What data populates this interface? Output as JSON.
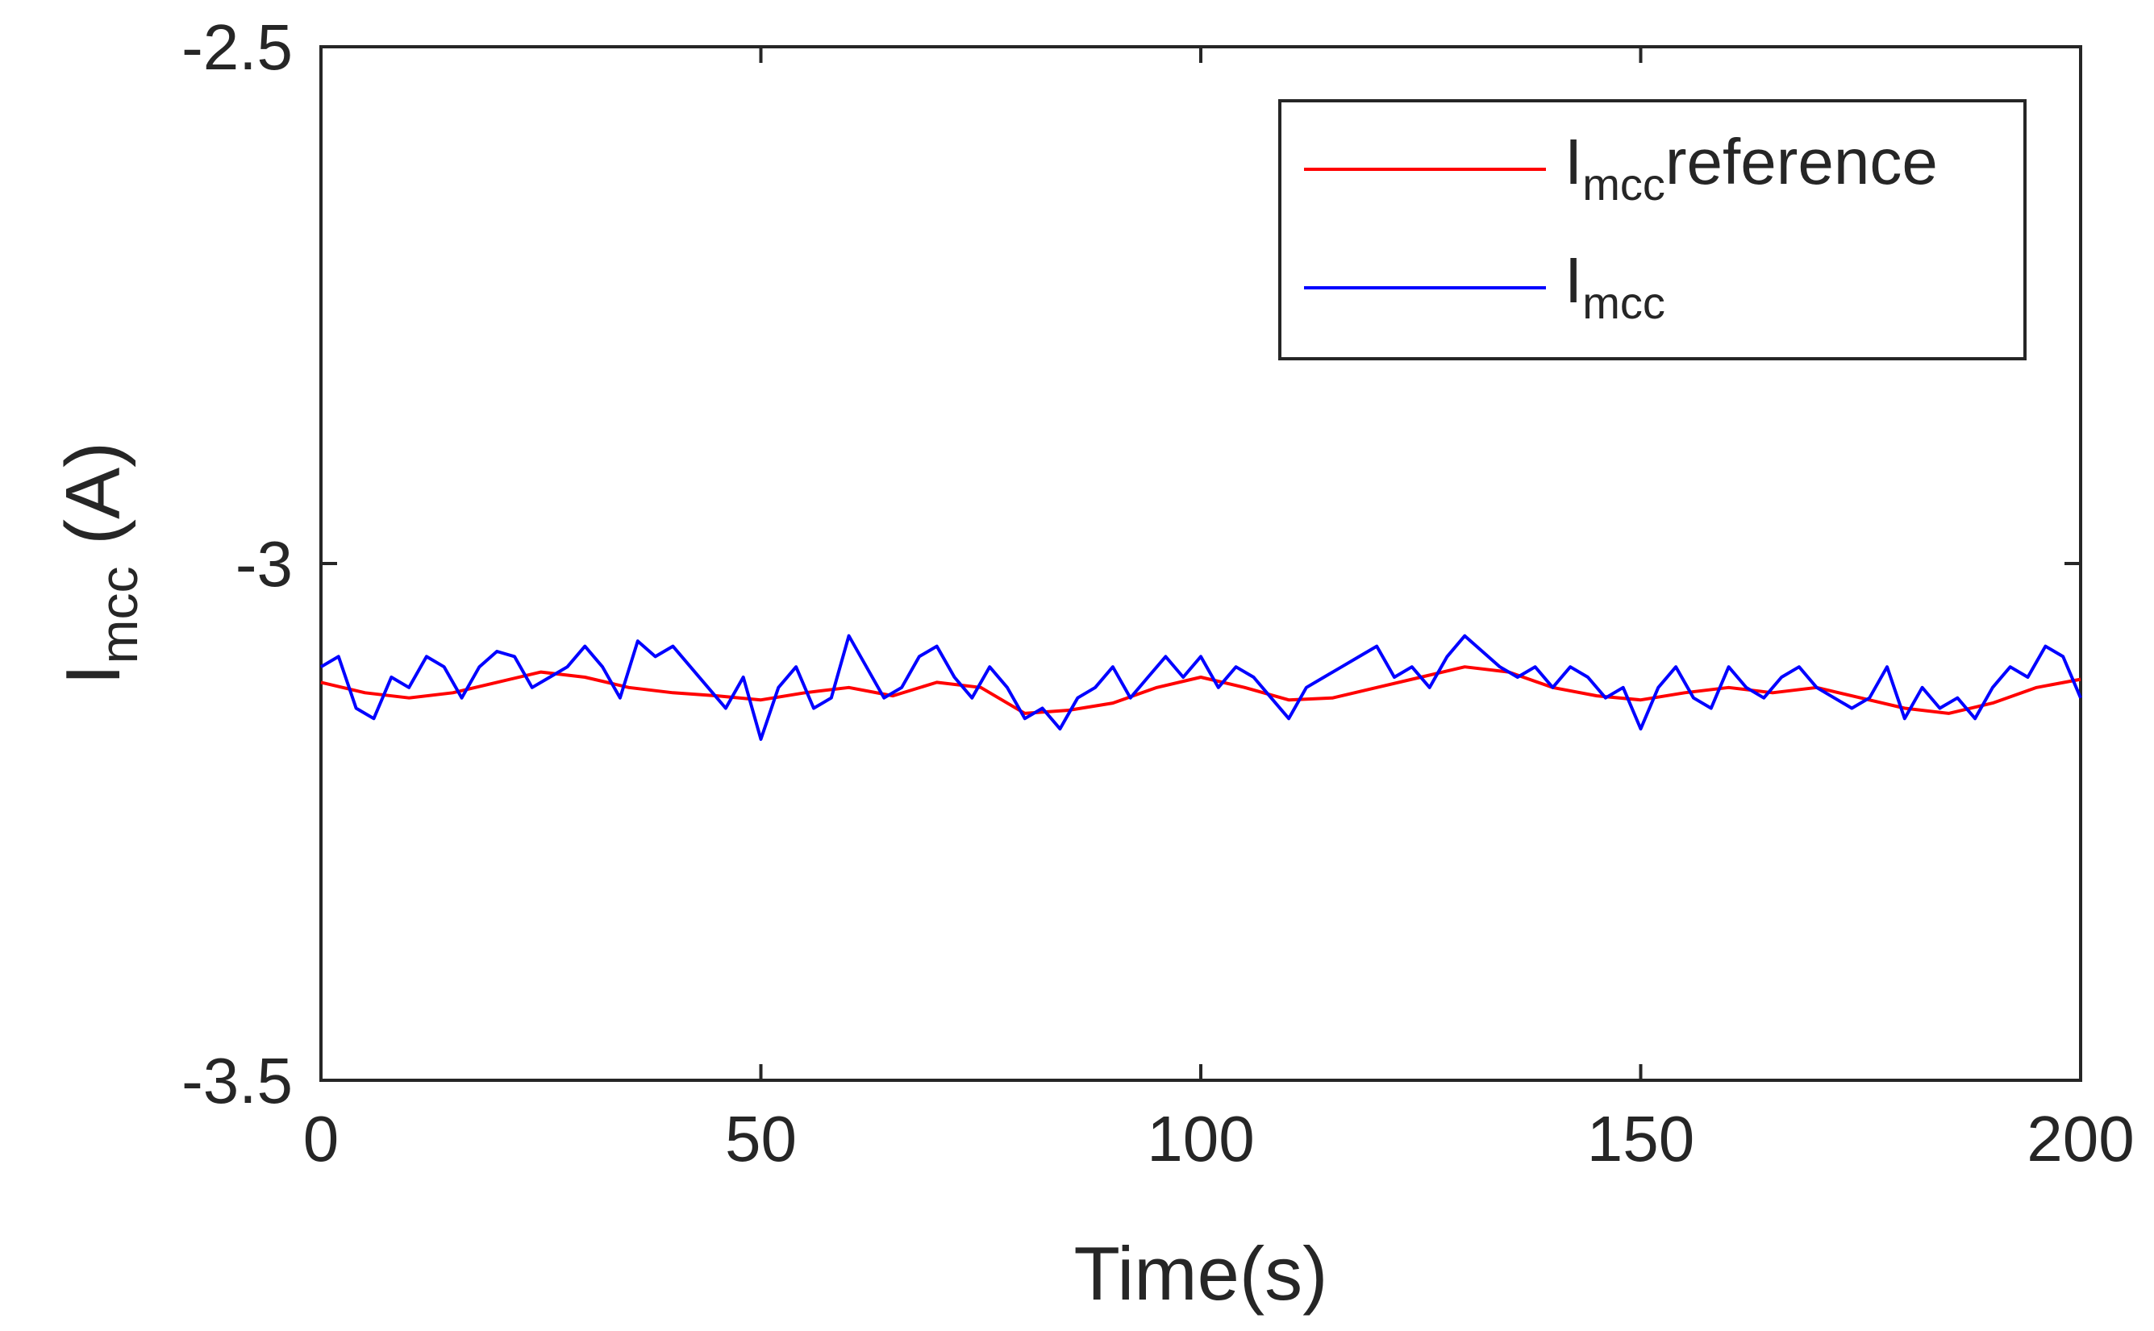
{
  "chart_data": {
    "type": "line",
    "xlabel": "Time(s)",
    "ylabel": {
      "main": "I",
      "sub": "mcc",
      "unit": " (A)"
    },
    "xlim": [
      0,
      200
    ],
    "ylim": [
      -3.5,
      -2.5
    ],
    "xticks": [
      0,
      50,
      100,
      150,
      200
    ],
    "xtick_labels": [
      "0",
      "50",
      "100",
      "150",
      "200"
    ],
    "yticks": [
      -3.5,
      -3,
      -2.5
    ],
    "ytick_labels": [
      "-3.5",
      "-3",
      "-2.5"
    ],
    "grid": false,
    "legend_position": "top-right",
    "series": [
      {
        "name": "I_mcc reference",
        "legend_main": "I",
        "legend_sub": "mcc",
        "legend_suffix": "reference",
        "color": "#ff0000",
        "x": [
          0,
          5,
          10,
          15,
          20,
          25,
          30,
          35,
          40,
          45,
          50,
          55,
          60,
          65,
          70,
          75,
          80,
          85,
          90,
          95,
          100,
          105,
          110,
          115,
          120,
          125,
          130,
          135,
          140,
          145,
          150,
          155,
          160,
          165,
          170,
          175,
          180,
          185,
          190,
          195,
          200
        ],
        "y": [
          -3.115,
          -3.125,
          -3.13,
          -3.125,
          -3.115,
          -3.105,
          -3.11,
          -3.12,
          -3.125,
          -3.128,
          -3.132,
          -3.125,
          -3.12,
          -3.128,
          -3.115,
          -3.12,
          -3.145,
          -3.142,
          -3.135,
          -3.12,
          -3.11,
          -3.12,
          -3.132,
          -3.13,
          -3.12,
          -3.11,
          -3.1,
          -3.105,
          -3.12,
          -3.128,
          -3.132,
          -3.125,
          -3.12,
          -3.125,
          -3.12,
          -3.13,
          -3.14,
          -3.145,
          -3.135,
          -3.12,
          -3.112
        ]
      },
      {
        "name": "I_mcc",
        "legend_main": "I",
        "legend_sub": "mcc",
        "legend_suffix": "",
        "color": "#0000ff",
        "x": [
          0,
          2,
          4,
          6,
          8,
          10,
          12,
          14,
          16,
          18,
          20,
          22,
          24,
          26,
          28,
          30,
          32,
          34,
          36,
          38,
          40,
          42,
          44,
          46,
          48,
          50,
          52,
          54,
          56,
          58,
          60,
          62,
          64,
          66,
          68,
          70,
          72,
          74,
          76,
          78,
          80,
          82,
          84,
          86,
          88,
          90,
          92,
          94,
          96,
          98,
          100,
          102,
          104,
          106,
          108,
          110,
          112,
          114,
          116,
          118,
          120,
          122,
          124,
          126,
          128,
          130,
          132,
          134,
          136,
          138,
          140,
          142,
          144,
          146,
          148,
          150,
          152,
          154,
          156,
          158,
          160,
          162,
          164,
          166,
          168,
          170,
          172,
          174,
          176,
          178,
          180,
          182,
          184,
          186,
          188,
          190,
          192,
          194,
          196,
          198,
          200
        ],
        "y": [
          -3.1,
          -3.09,
          -3.14,
          -3.15,
          -3.11,
          -3.12,
          -3.09,
          -3.1,
          -3.13,
          -3.1,
          -3.085,
          -3.09,
          -3.12,
          -3.11,
          -3.1,
          -3.08,
          -3.1,
          -3.13,
          -3.075,
          -3.09,
          -3.08,
          -3.1,
          -3.12,
          -3.14,
          -3.11,
          -3.17,
          -3.12,
          -3.1,
          -3.14,
          -3.13,
          -3.07,
          -3.1,
          -3.13,
          -3.12,
          -3.09,
          -3.08,
          -3.11,
          -3.13,
          -3.1,
          -3.12,
          -3.15,
          -3.14,
          -3.16,
          -3.13,
          -3.12,
          -3.1,
          -3.13,
          -3.11,
          -3.09,
          -3.11,
          -3.09,
          -3.12,
          -3.1,
          -3.11,
          -3.13,
          -3.15,
          -3.12,
          -3.11,
          -3.1,
          -3.09,
          -3.08,
          -3.11,
          -3.1,
          -3.12,
          -3.09,
          -3.07,
          -3.085,
          -3.1,
          -3.11,
          -3.1,
          -3.12,
          -3.1,
          -3.11,
          -3.13,
          -3.12,
          -3.16,
          -3.12,
          -3.1,
          -3.13,
          -3.14,
          -3.1,
          -3.12,
          -3.13,
          -3.11,
          -3.1,
          -3.12,
          -3.13,
          -3.14,
          -3.13,
          -3.1,
          -3.15,
          -3.12,
          -3.14,
          -3.13,
          -3.15,
          -3.12,
          -3.1,
          -3.11,
          -3.08,
          -3.09,
          -3.13
        ]
      }
    ]
  }
}
